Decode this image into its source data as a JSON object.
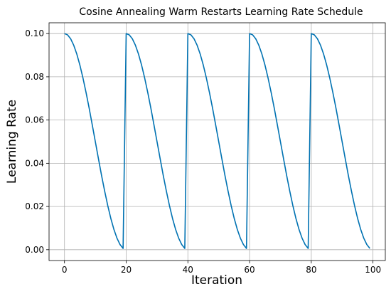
{
  "chart_data": {
    "type": "line",
    "title": "Cosine Annealing Warm Restarts Learning Rate Schedule",
    "xlabel": "Iteration",
    "ylabel": "Learning Rate",
    "xlim": [
      -5,
      104
    ],
    "ylim": [
      -0.005,
      0.105
    ],
    "xticks": [
      0,
      20,
      40,
      60,
      80,
      100
    ],
    "xtick_labels": [
      "0",
      "20",
      "40",
      "60",
      "80",
      "100"
    ],
    "yticks": [
      0.0,
      0.02,
      0.04,
      0.06,
      0.08,
      0.1
    ],
    "ytick_labels": [
      "0.00",
      "0.02",
      "0.04",
      "0.06",
      "0.08",
      "0.10"
    ],
    "grid": true,
    "series": [
      {
        "color": "#0072b2",
        "x": [
          0,
          1,
          2,
          3,
          4,
          5,
          6,
          7,
          8,
          9,
          10,
          11,
          12,
          13,
          14,
          15,
          16,
          17,
          18,
          19,
          20,
          21,
          22,
          23,
          24,
          25,
          26,
          27,
          28,
          29,
          30,
          31,
          32,
          33,
          34,
          35,
          36,
          37,
          38,
          39,
          40,
          41,
          42,
          43,
          44,
          45,
          46,
          47,
          48,
          49,
          50,
          51,
          52,
          53,
          54,
          55,
          56,
          57,
          58,
          59,
          60,
          61,
          62,
          63,
          64,
          65,
          66,
          67,
          68,
          69,
          70,
          71,
          72,
          73,
          74,
          75,
          76,
          77,
          78,
          79,
          80,
          81,
          82,
          83,
          84,
          85,
          86,
          87,
          88,
          89,
          90,
          91,
          92,
          93,
          94,
          95,
          96,
          97,
          98,
          99
        ],
        "values": [
          0.1,
          0.0994,
          0.0976,
          0.0946,
          0.0905,
          0.0854,
          0.0794,
          0.0727,
          0.0655,
          0.0578,
          0.05,
          0.0422,
          0.0345,
          0.0273,
          0.0206,
          0.0146,
          0.0095,
          0.0054,
          0.0024,
          0.0006,
          0.1,
          0.0994,
          0.0976,
          0.0946,
          0.0905,
          0.0854,
          0.0794,
          0.0727,
          0.0655,
          0.0578,
          0.05,
          0.0422,
          0.0345,
          0.0273,
          0.0206,
          0.0146,
          0.0095,
          0.0054,
          0.0024,
          0.0006,
          0.1,
          0.0994,
          0.0976,
          0.0946,
          0.0905,
          0.0854,
          0.0794,
          0.0727,
          0.0655,
          0.0578,
          0.05,
          0.0422,
          0.0345,
          0.0273,
          0.0206,
          0.0146,
          0.0095,
          0.0054,
          0.0024,
          0.0006,
          0.1,
          0.0994,
          0.0976,
          0.0946,
          0.0905,
          0.0854,
          0.0794,
          0.0727,
          0.0655,
          0.0578,
          0.05,
          0.0422,
          0.0345,
          0.0273,
          0.0206,
          0.0146,
          0.0095,
          0.0054,
          0.0024,
          0.0006,
          0.1,
          0.0994,
          0.0976,
          0.0946,
          0.0905,
          0.0854,
          0.0794,
          0.0727,
          0.0655,
          0.0578,
          0.05,
          0.0422,
          0.0345,
          0.0273,
          0.0206,
          0.0146,
          0.0095,
          0.0054,
          0.0024,
          0.0006
        ]
      }
    ]
  }
}
